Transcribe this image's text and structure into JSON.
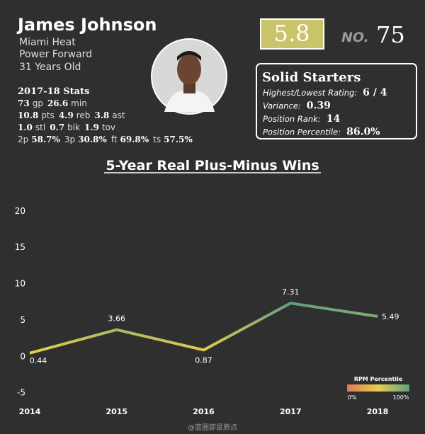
{
  "player": {
    "name": "James Johnson",
    "team": "Miami Heat",
    "position": "Power Forward",
    "age": "31 Years Old",
    "stats_title": "2017-18 Stats",
    "stats": [
      [
        [
          "73",
          "gp"
        ],
        [
          "26.6",
          "min"
        ]
      ],
      [
        [
          "10.8",
          "pts"
        ],
        [
          "4.9",
          "reb"
        ],
        [
          "3.8",
          "ast"
        ]
      ],
      [
        [
          "1.0",
          "stl"
        ],
        [
          "0.7",
          "blk"
        ],
        [
          "1.9",
          "tov"
        ]
      ],
      [
        [
          "58.7%",
          "2p"
        ],
        [
          "30.8%",
          "3p"
        ],
        [
          "69.8%",
          "ft"
        ],
        [
          "57.5%",
          "ts"
        ]
      ]
    ],
    "rating": "5.8",
    "rank_prefix": "NO.",
    "rank": "75"
  },
  "tier": {
    "title": "Solid Starters",
    "rows": [
      [
        "Highest/Lowest Rating:",
        "6 / 4"
      ],
      [
        "Variance:",
        "0.39"
      ],
      [
        "Position Rank:",
        "14"
      ],
      [
        "Position Percentile:",
        "86.0%"
      ]
    ]
  },
  "chart_data": {
    "type": "line",
    "title": "5-Year Real Plus-Minus Wins",
    "x": [
      2014,
      2015,
      2016,
      2017,
      2018
    ],
    "values": [
      0.44,
      3.66,
      0.87,
      7.31,
      5.49
    ],
    "xlim": [
      2014,
      2018
    ],
    "xticks": [
      2014,
      2015,
      2016,
      2017,
      2018
    ],
    "ylim": [
      -6.3,
      22.9
    ],
    "yticks": [
      -5,
      0,
      5,
      10,
      15,
      20
    ],
    "legend_title": "RPM Percentile",
    "legend_min": "0%",
    "legend_max": "100%",
    "colormap": [
      "#e0785a",
      "#e8cf4a",
      "#5f9f80"
    ]
  },
  "watermark": "@篮圈即是原点"
}
